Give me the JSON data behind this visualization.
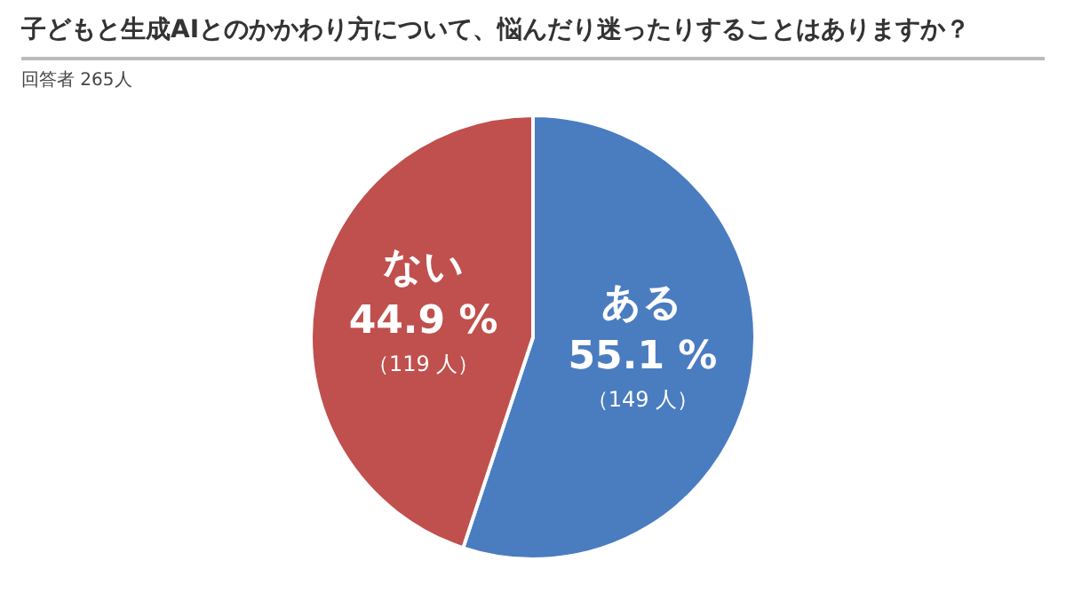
{
  "chart_data": {
    "type": "pie",
    "title": "子どもと生成AIとのかかわり方について、悩んだり迷ったりすることはありますか？",
    "subtitle": "回答者 265人",
    "categories": [
      "ある",
      "ない"
    ],
    "values": [
      55.1,
      44.9
    ],
    "colors": [
      "#4a7cc0",
      "#c0504d"
    ],
    "value_labels": [
      "55.1 %",
      "44.9 %"
    ],
    "annotations": [
      {
        "text": "（149 人）",
        "x": "ある"
      },
      {
        "text": "（119 人）",
        "x": "ない"
      }
    ],
    "legend": false
  }
}
